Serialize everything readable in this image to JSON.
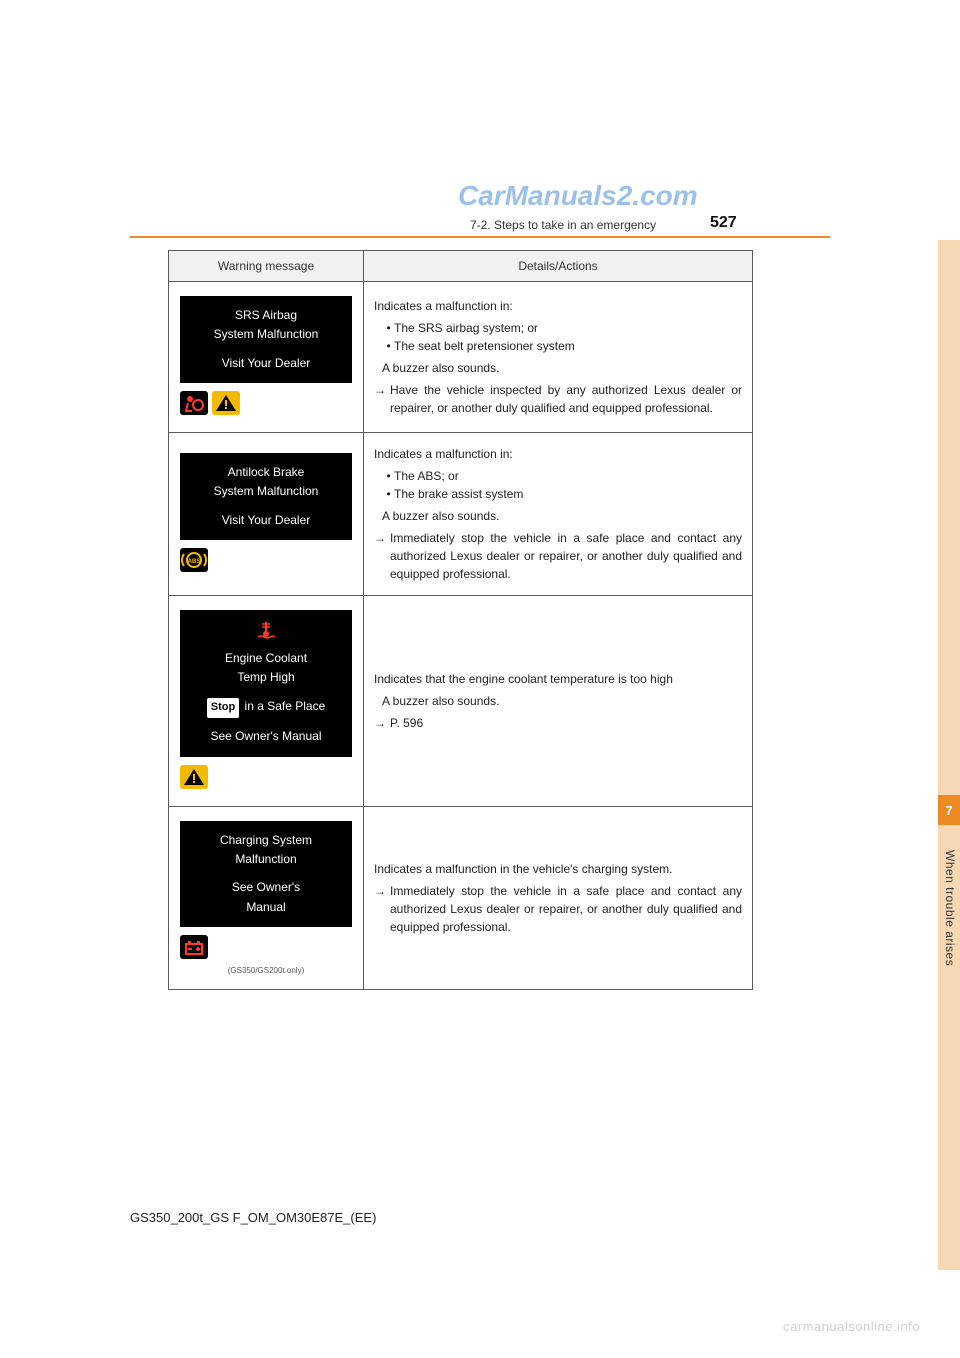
{
  "watermark_top": "CarManuals2.com",
  "watermark_bottom": "carmanualsonline.info",
  "breadcrumb": "7-2. Steps to take in an emergency",
  "page_number": "527",
  "doc_id": "GS350_200t_GS F_OM_OM30E87E_(EE)",
  "side_tab_number": "7",
  "side_vertical_label": "When trouble arises",
  "colors": {
    "accent": "#ec8a22",
    "thumb": "#f6d9b4",
    "watermark_blue": "#4a90d9",
    "icon_yellow": "#f4ba00",
    "icon_red": "#ff3a2f",
    "border": "#5a5a5a"
  },
  "table": {
    "headers": {
      "left": "Warning message",
      "right": "Details/Actions"
    },
    "rows": [
      {
        "screen": {
          "lines": [
            "SRS Airbag",
            "System Malfunction",
            "",
            "Visit Your Dealer"
          ],
          "bottom_icons": [
            "airbag-red",
            "warning-yellow"
          ]
        },
        "details": {
          "intro": "Indicates a malfunction in:",
          "bullets": [
            "The SRS airbag system; or",
            "The seat belt pretensioner system"
          ],
          "sub": "A buzzer also sounds.",
          "arrow_text": "Have the vehicle inspected by any authorized Lexus dealer or repairer, or another duly qualified and equipped professional."
        }
      },
      {
        "screen": {
          "lines": [
            "Antilock Brake",
            "System Malfunction",
            "",
            "Visit Your Dealer"
          ],
          "bottom_icons": [
            "abs-yellow"
          ]
        },
        "details": {
          "intro": "Indicates a malfunction in:",
          "bullets": [
            "The ABS; or",
            "The brake assist system"
          ],
          "sub": "A buzzer also sounds.",
          "arrow_text": "Immediately stop the vehicle in a safe place and contact any authorized Lexus dealer or repairer, or another duly qualified and equipped professional."
        }
      },
      {
        "screen": {
          "pre_icon": "temp-red",
          "lines": [
            "Engine Coolant",
            "Temp High",
            "",
            "[STOP] in a Safe Place",
            "",
            "See Owner's Manual"
          ],
          "bottom_icons": [
            "warning-yellow"
          ]
        },
        "details": {
          "intro": "Indicates that the engine coolant temperature is too high",
          "sub": "A buzzer also sounds.",
          "arrow_text": "P. 596"
        }
      },
      {
        "screen": {
          "lines": [
            "Charging System",
            "Malfunction",
            "",
            "See Owner's",
            "Manual"
          ],
          "bottom_icons": [
            "battery-red"
          ],
          "caption": "(GS350/GS200t only)"
        },
        "details": {
          "intro": "Indicates a malfunction in the vehicle's charging system.",
          "arrow_text": "Immediately stop the vehicle in a safe place and contact any authorized Lexus dealer or repairer, or another duly qualified and equipped professional."
        }
      }
    ]
  }
}
